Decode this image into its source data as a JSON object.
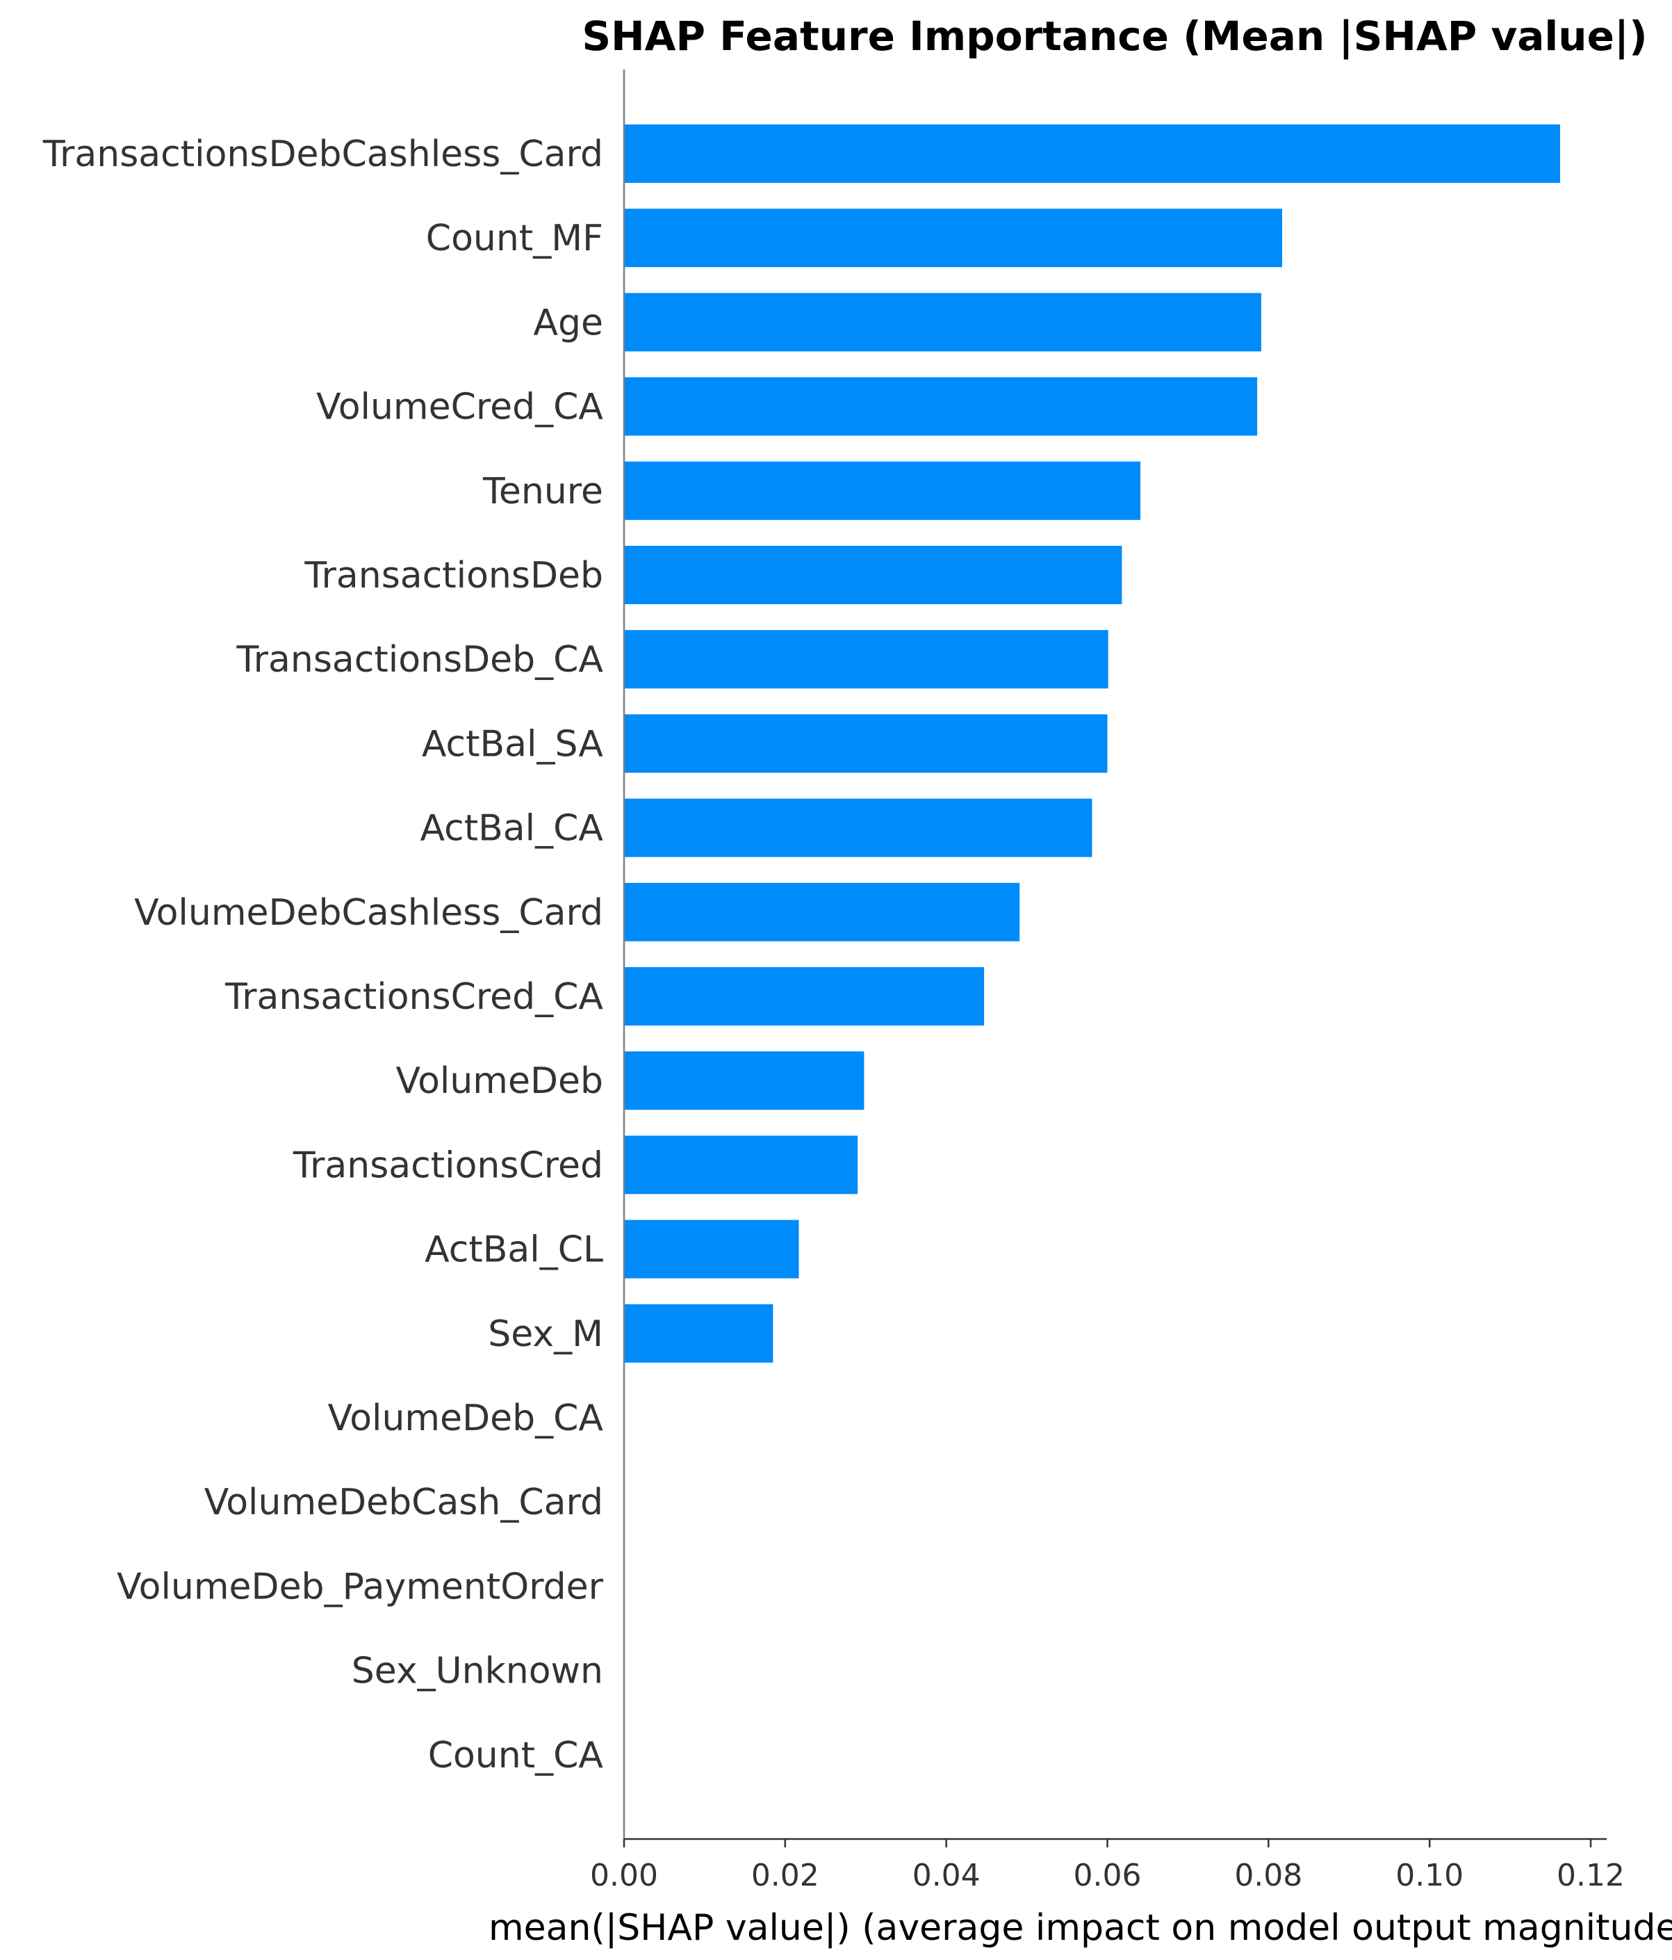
{
  "chart_data": {
    "type": "bar",
    "orientation": "horizontal",
    "title": "SHAP Feature Importance (Mean |SHAP value|)",
    "xlabel": "mean(|SHAP value|) (average impact on model output magnitude)",
    "ylabel": "",
    "xlim": [
      0,
      0.122
    ],
    "xticks": [
      0.0,
      0.02,
      0.04,
      0.06,
      0.08,
      0.1,
      0.12
    ],
    "xtick_labels": [
      "0.00",
      "0.02",
      "0.04",
      "0.06",
      "0.08",
      "0.10",
      "0.12"
    ],
    "grid": false,
    "bar_color": "#008bfb",
    "categories": [
      "TransactionsDebCashless_Card",
      "Count_MF",
      "Age",
      "VolumeCred_CA",
      "Tenure",
      "TransactionsDeb",
      "TransactionsDeb_CA",
      "ActBal_SA",
      "ActBal_CA",
      "VolumeDebCashless_Card",
      "TransactionsCred_CA",
      "VolumeDeb",
      "TransactionsCred",
      "ActBal_CL",
      "Sex_M",
      "VolumeDeb_CA",
      "VolumeDebCash_Card",
      "VolumeDeb_PaymentOrder",
      "Sex_Unknown",
      "Count_CA"
    ],
    "values": [
      0.1162,
      0.0817,
      0.0791,
      0.0786,
      0.0641,
      0.0618,
      0.0601,
      0.06,
      0.0581,
      0.0491,
      0.0447,
      0.0298,
      0.029,
      0.0217,
      0.0185,
      0,
      0,
      0,
      0,
      0
    ]
  }
}
